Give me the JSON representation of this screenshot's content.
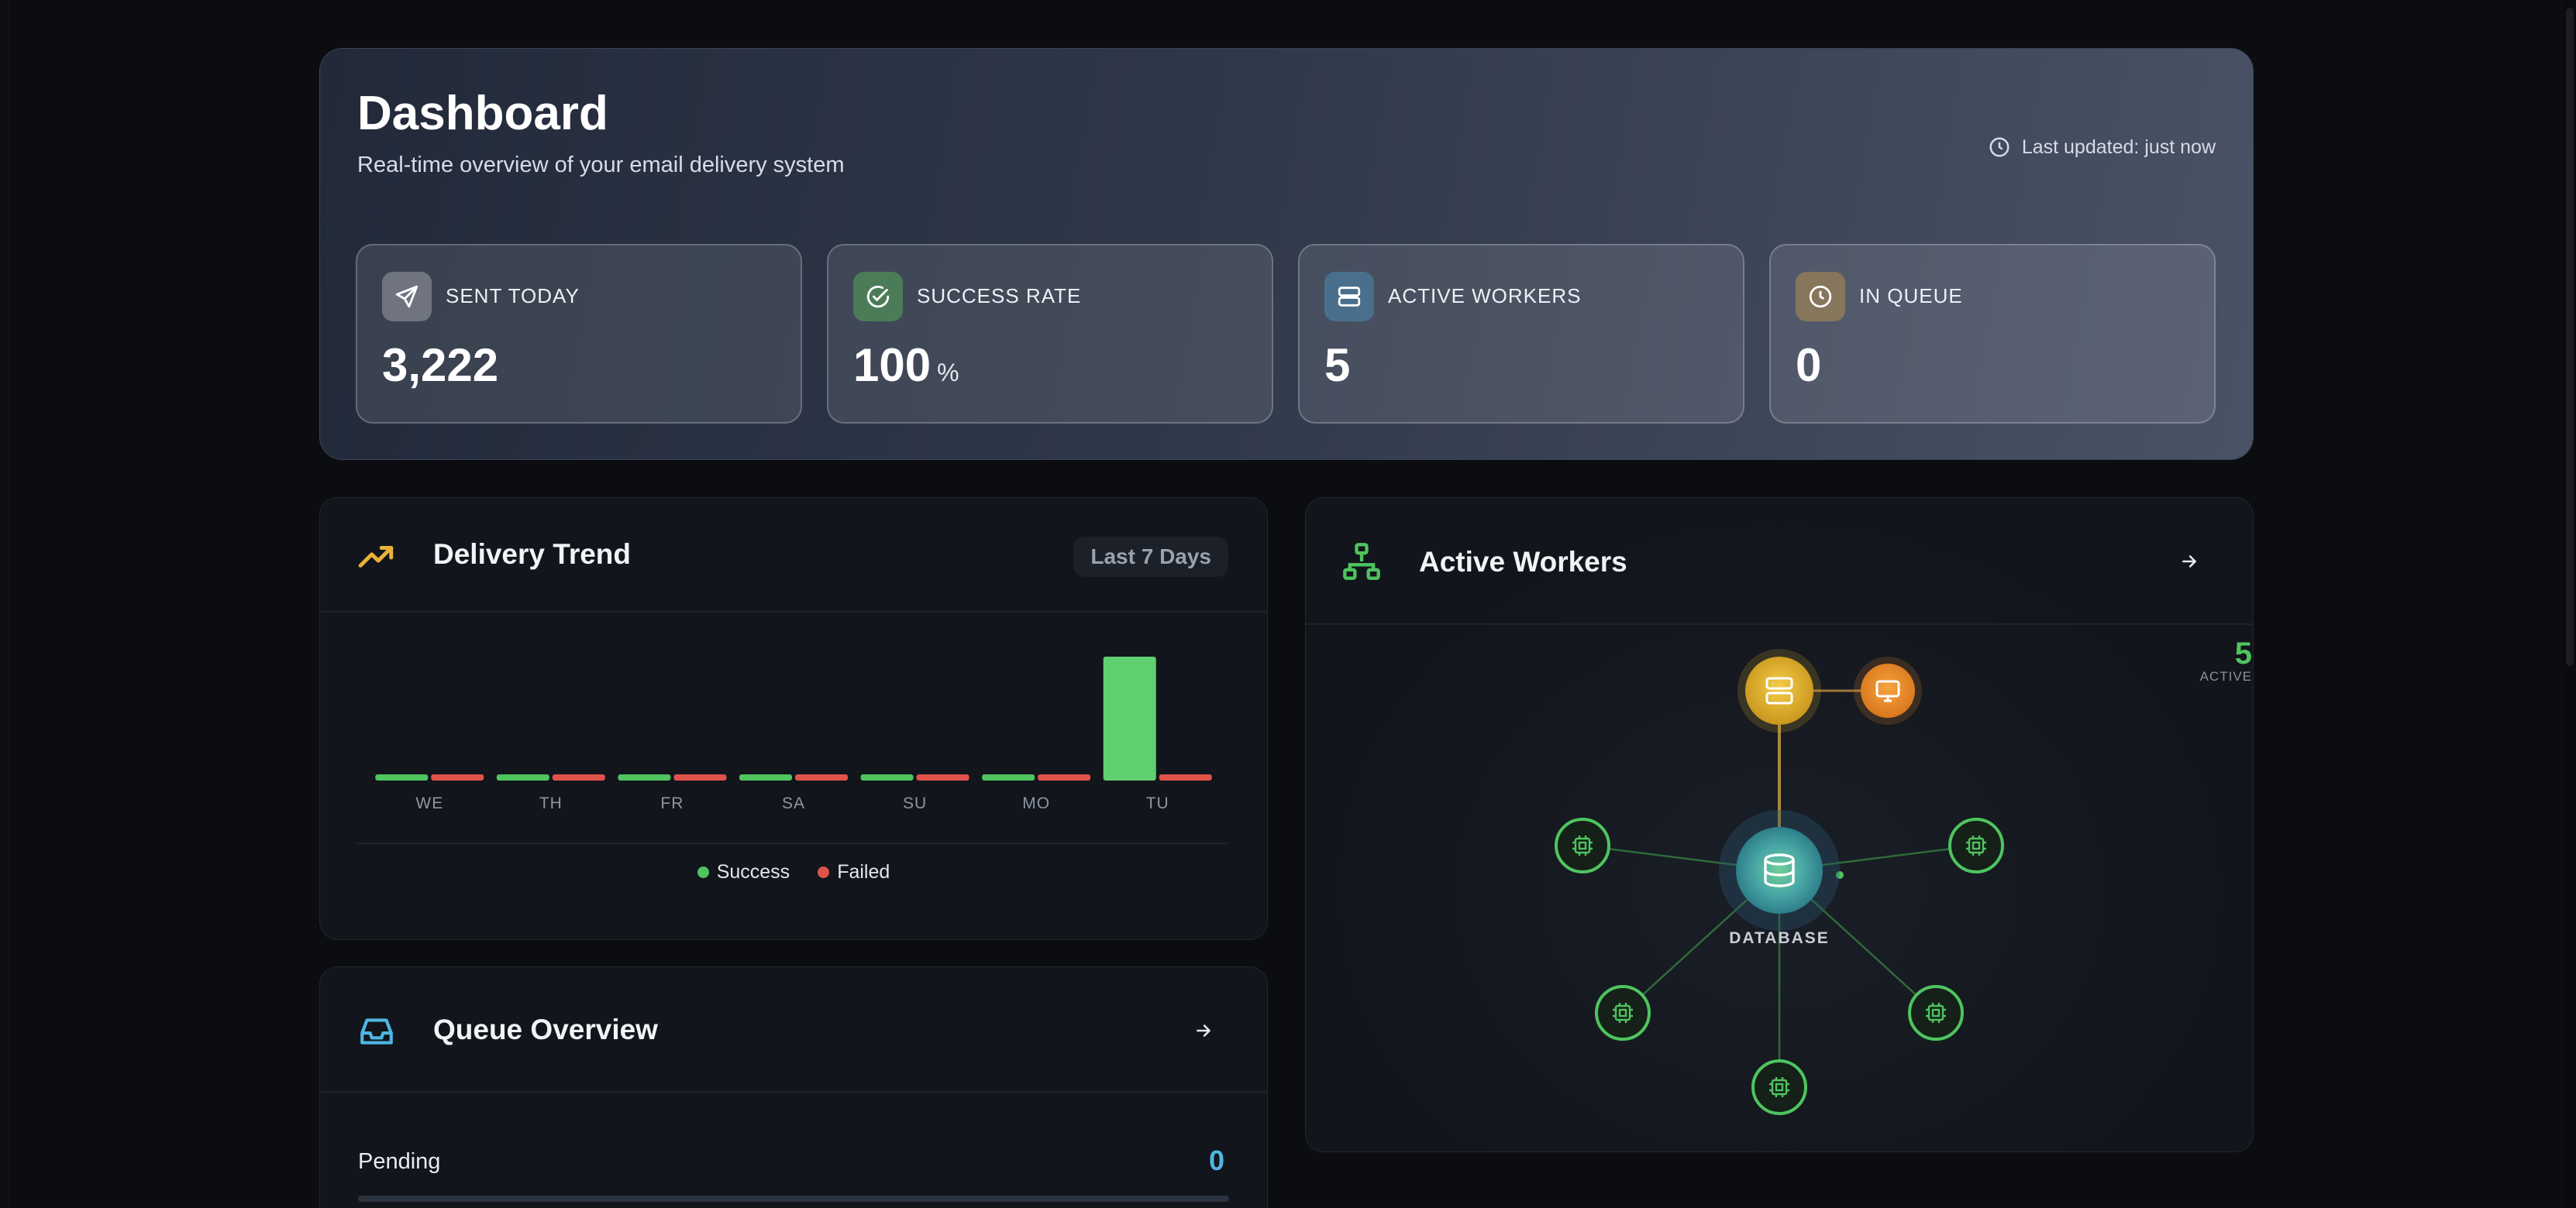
{
  "header": {
    "title": "Dashboard",
    "subtitle": "Real-time overview of your email delivery system",
    "last_updated": "Last updated: just now"
  },
  "stats": [
    {
      "label": "SENT TODAY",
      "value": "3,222",
      "unit": "",
      "icon": "send-icon",
      "color": "#8a8f9a"
    },
    {
      "label": "SUCCESS RATE",
      "value": "100",
      "unit": "%",
      "icon": "check-circle-icon",
      "color": "#4f8a5f"
    },
    {
      "label": "ACTIVE WORKERS",
      "value": "5",
      "unit": "",
      "icon": "server-icon",
      "color": "#4e7896"
    },
    {
      "label": "IN QUEUE",
      "value": "0",
      "unit": "",
      "icon": "clock-icon",
      "color": "#8c7a5e"
    }
  ],
  "delivery_trend": {
    "title": "Delivery Trend",
    "range_label": "Last 7 Days",
    "legend_success": "Success",
    "legend_failed": "Failed",
    "success_color": "#4fc45f",
    "failed_color": "#e0534b"
  },
  "chart_data": {
    "type": "bar",
    "categories": [
      "WE",
      "TH",
      "FR",
      "SA",
      "SU",
      "MO",
      "TU"
    ],
    "series": [
      {
        "name": "Success",
        "values": [
          0,
          0,
          0,
          0,
          0,
          0,
          3222
        ]
      },
      {
        "name": "Failed",
        "values": [
          0,
          0,
          0,
          0,
          0,
          0,
          0
        ]
      }
    ],
    "legend_position": "bottom",
    "grid": false
  },
  "queue_overview": {
    "title": "Queue Overview",
    "rows": [
      {
        "label": "Pending",
        "value": "0"
      }
    ]
  },
  "active_workers": {
    "title": "Active Workers",
    "center_label": "DATABASE",
    "count": "5",
    "count_label": "ACTIVE",
    "worker_color": "#4fc45f",
    "server_color": "#e0b233",
    "monitor_color": "#ef8c2a"
  }
}
